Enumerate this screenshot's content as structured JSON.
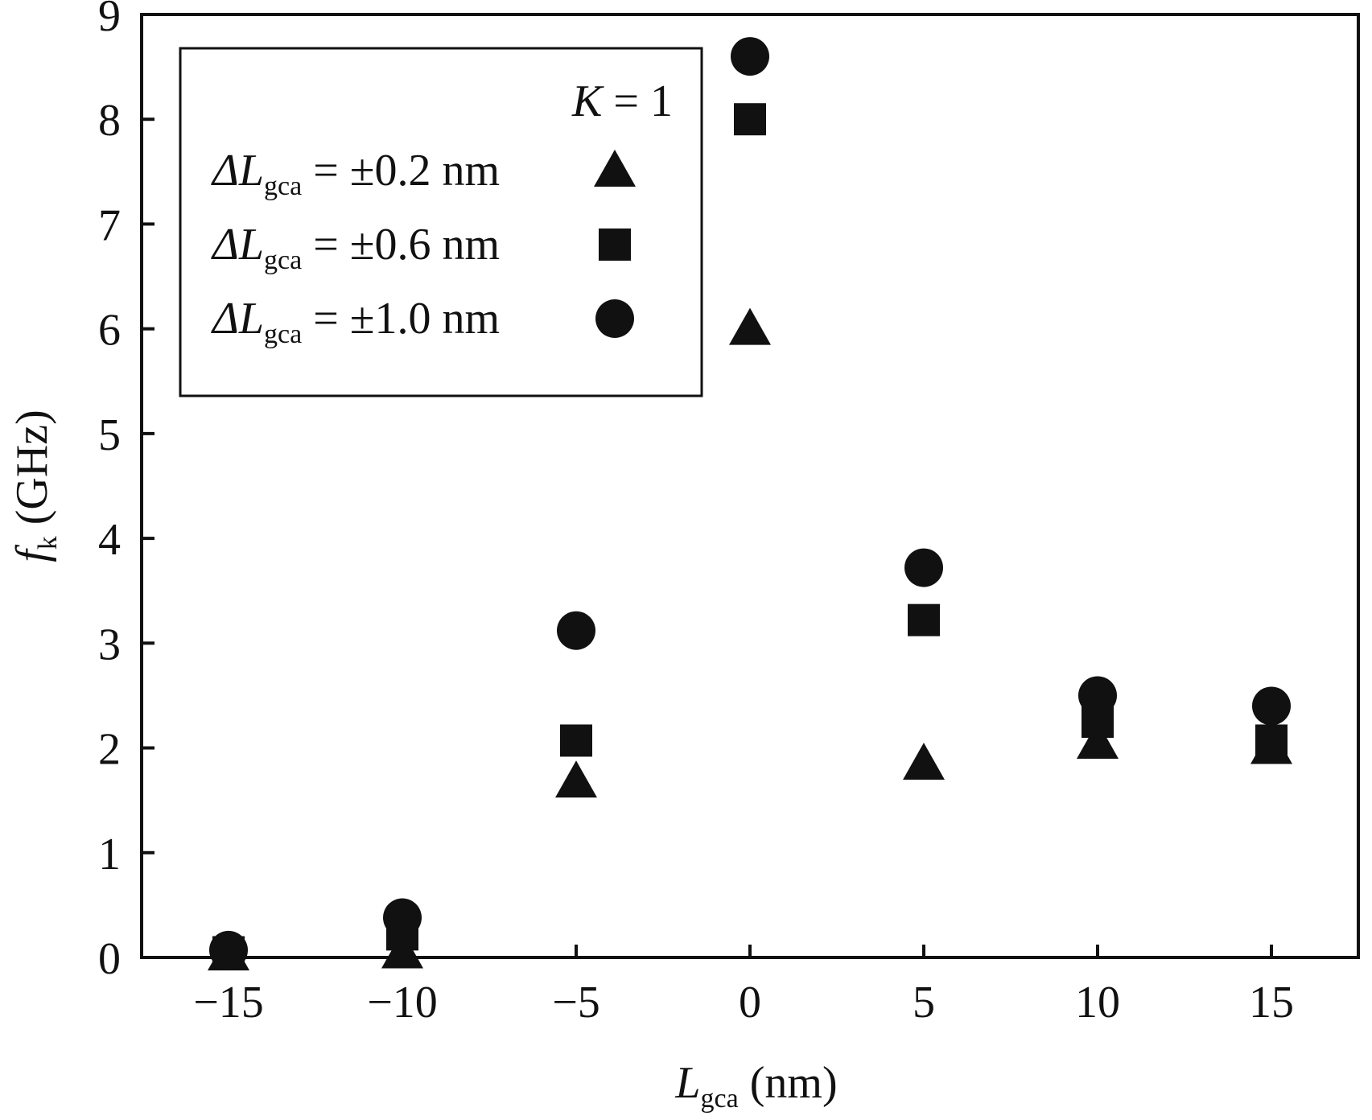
{
  "chart_data": {
    "type": "scatter",
    "xlabel": {
      "main": "L",
      "sub": "gca",
      "unit": "(nm)"
    },
    "ylabel": {
      "main": "f",
      "sub": "k",
      "unit": "(GHz)"
    },
    "xlim": [
      -17.5,
      17.5
    ],
    "ylim": [
      0,
      9
    ],
    "xticks": [
      -15,
      -10,
      -5,
      0,
      5,
      10,
      15
    ],
    "xtick_labels": [
      "−15",
      "−10",
      "−5",
      "0",
      "5",
      "10",
      "15"
    ],
    "yticks": [
      0,
      1,
      2,
      3,
      4,
      5,
      6,
      7,
      8,
      9
    ],
    "ytick_labels": [
      "0",
      "1",
      "2",
      "3",
      "4",
      "5",
      "6",
      "7",
      "8",
      "9"
    ],
    "grid": false,
    "legend_position": "top-left",
    "legend_title": {
      "var": "K",
      "rest": " = 1"
    },
    "series": [
      {
        "name": "ΔLgca = ±0.2 nm",
        "label_prefix": "ΔL",
        "label_sub": "gca",
        "label_suffix": " = ±0.2 nm",
        "marker": "triangle",
        "x": [
          -15,
          -10,
          -5,
          0,
          5,
          10,
          15
        ],
        "y": [
          0.03,
          0.05,
          1.68,
          6.0,
          1.85,
          2.05,
          2.0
        ]
      },
      {
        "name": "ΔLgca = ±0.6 nm",
        "label_prefix": "ΔL",
        "label_sub": "gca",
        "label_suffix": " = ±0.6 nm",
        "marker": "square",
        "x": [
          -15,
          -10,
          -5,
          0,
          5,
          10,
          15
        ],
        "y": [
          0.05,
          0.22,
          2.07,
          8.0,
          3.22,
          2.25,
          2.07
        ]
      },
      {
        "name": "ΔLgca = ±1.0 nm",
        "label_prefix": "ΔL",
        "label_sub": "gca",
        "label_suffix": " = ±1.0 nm",
        "marker": "circle",
        "x": [
          -15,
          -10,
          -5,
          0,
          5,
          10,
          15
        ],
        "y": [
          0.07,
          0.38,
          3.12,
          8.6,
          3.72,
          2.5,
          2.4
        ]
      }
    ]
  },
  "colors": {
    "ink": "#111111",
    "background": "#ffffff"
  }
}
